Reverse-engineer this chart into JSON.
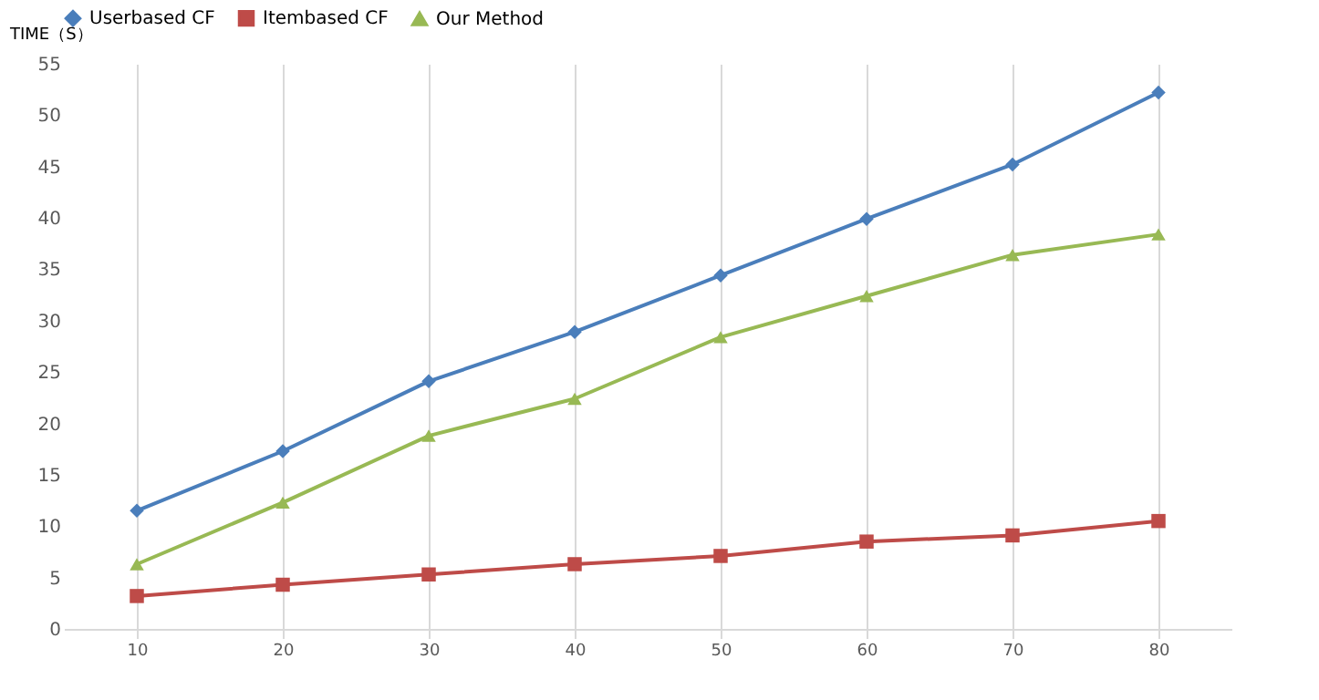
{
  "chart_data": {
    "type": "line",
    "ylabel": "TIME（S）",
    "categories": [
      "10",
      "20",
      "30",
      "40",
      "50",
      "60",
      "70",
      "80"
    ],
    "series": [
      {
        "name": "Userbased CF",
        "color": "#4a7ebb",
        "marker": "diamond",
        "values": [
          11.5,
          17.3,
          24.1,
          28.9,
          34.4,
          39.9,
          45.2,
          52.2
        ]
      },
      {
        "name": "Itembased CF",
        "color": "#be4b48",
        "marker": "square",
        "values": [
          3.2,
          4.3,
          5.3,
          6.3,
          7.1,
          8.5,
          9.1,
          10.5
        ]
      },
      {
        "name": "Our Method",
        "color": "#98b954",
        "marker": "triangle",
        "values": [
          6.3,
          12.3,
          18.8,
          22.4,
          28.4,
          32.4,
          36.4,
          38.4
        ]
      }
    ],
    "ylim": [
      0,
      55
    ],
    "yticks": [
      0,
      5,
      10,
      15,
      20,
      25,
      30,
      35,
      40,
      45,
      50,
      55
    ],
    "grid": "x",
    "legend": "top",
    "line_style": "solid"
  }
}
